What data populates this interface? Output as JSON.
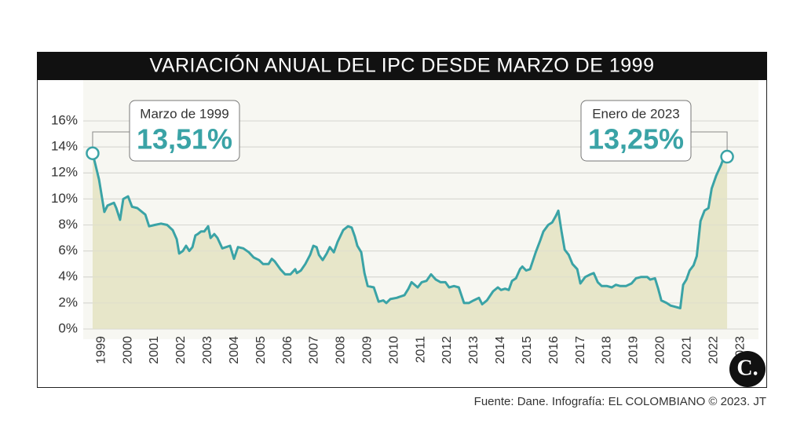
{
  "chart_data": {
    "type": "area",
    "title": "VARIACIÓN ANUAL DEL IPC DESDE MARZO DE 1999",
    "source": "Fuente: Dane. Infografía: EL COLOMBIANO © 2023. JT",
    "logo": "C.",
    "x": [
      1999.17,
      1999.41,
      1999.61,
      1999.73,
      1999.97,
      2000.06,
      2000.2,
      2000.32,
      2000.5,
      2000.65,
      2000.85,
      2001.15,
      2001.29,
      2001.5,
      2001.74,
      2001.97,
      2002.18,
      2002.33,
      2002.42,
      2002.56,
      2002.68,
      2002.8,
      2002.92,
      2003.03,
      2003.12,
      2003.24,
      2003.36,
      2003.51,
      2003.6,
      2003.74,
      2003.86,
      2004.04,
      2004.33,
      2004.48,
      2004.63,
      2004.83,
      2005.04,
      2005.22,
      2005.42,
      2005.57,
      2005.78,
      2005.9,
      2006.01,
      2006.22,
      2006.4,
      2006.6,
      2006.78,
      2006.84,
      2006.99,
      2007.16,
      2007.34,
      2007.46,
      2007.58,
      2007.67,
      2007.81,
      2007.96,
      2008.08,
      2008.23,
      2008.37,
      2008.58,
      2008.76,
      2008.9,
      2009.02,
      2009.11,
      2009.26,
      2009.38,
      2009.5,
      2009.73,
      2009.91,
      2010.09,
      2010.2,
      2010.35,
      2010.59,
      2010.88,
      2011.03,
      2011.15,
      2011.38,
      2011.53,
      2011.71,
      2011.88,
      2012.06,
      2012.24,
      2012.42,
      2012.56,
      2012.74,
      2012.92,
      2013.12,
      2013.3,
      2013.48,
      2013.68,
      2013.8,
      2013.98,
      2014.21,
      2014.39,
      2014.51,
      2014.66,
      2014.8,
      2014.92,
      2015.07,
      2015.22,
      2015.31,
      2015.45,
      2015.6,
      2015.81,
      2015.98,
      2016.1,
      2016.28,
      2016.43,
      2016.57,
      2016.66,
      2016.78,
      2016.9,
      2017.05,
      2017.19,
      2017.37,
      2017.49,
      2017.67,
      2017.87,
      2017.99,
      2018.14,
      2018.29,
      2018.49,
      2018.67,
      2018.82,
      2018.99,
      2019.2,
      2019.41,
      2019.58,
      2019.76,
      2020.0,
      2020.11,
      2020.29,
      2020.41,
      2020.53,
      2020.73,
      2020.88,
      2021.06,
      2021.24,
      2021.35,
      2021.47,
      2021.59,
      2021.74,
      2021.86,
      2022.0,
      2022.15,
      2022.3,
      2022.42,
      2022.59,
      2022.77,
      2022.86,
      2023.0
    ],
    "series": [
      {
        "color": "#3aa3a6",
        "fill": "#e7e6c9",
        "values": [
          13.51,
          11.5,
          9.0,
          9.5,
          9.7,
          9.3,
          8.4,
          10.0,
          10.2,
          9.4,
          9.3,
          8.8,
          7.9,
          8.0,
          8.1,
          8.0,
          7.6,
          6.9,
          5.8,
          6.0,
          6.4,
          6.0,
          6.3,
          7.2,
          7.3,
          7.5,
          7.5,
          7.9,
          7.0,
          7.3,
          7.0,
          6.2,
          6.4,
          5.4,
          6.3,
          6.2,
          5.9,
          5.5,
          5.3,
          5.0,
          5.0,
          5.4,
          5.2,
          4.6,
          4.2,
          4.2,
          4.6,
          4.3,
          4.5,
          5.0,
          5.7,
          6.4,
          6.3,
          5.7,
          5.3,
          5.8,
          6.3,
          5.9,
          6.7,
          7.6,
          7.9,
          7.8,
          7.1,
          6.4,
          5.9,
          4.3,
          3.3,
          3.2,
          2.1,
          2.2,
          2.0,
          2.3,
          2.4,
          2.6,
          3.1,
          3.6,
          3.2,
          3.6,
          3.7,
          4.2,
          3.8,
          3.6,
          3.6,
          3.2,
          3.3,
          3.2,
          2.0,
          2.0,
          2.2,
          2.4,
          1.9,
          2.2,
          2.9,
          3.2,
          3.0,
          3.1,
          3.0,
          3.7,
          3.9,
          4.6,
          4.8,
          4.5,
          4.6,
          5.9,
          6.8,
          7.5,
          8.0,
          8.2,
          8.7,
          9.1,
          7.5,
          6.1,
          5.7,
          5.0,
          4.6,
          3.5,
          4.0,
          4.2,
          4.3,
          3.6,
          3.3,
          3.3,
          3.2,
          3.4,
          3.3,
          3.3,
          3.5,
          3.9,
          4.0,
          4.0,
          3.8,
          3.9,
          3.1,
          2.2,
          2.0,
          1.8,
          1.7,
          1.6,
          3.4,
          3.8,
          4.5,
          4.9,
          5.6,
          8.3,
          9.1,
          9.3,
          10.8,
          11.8,
          12.6,
          13.1,
          13.25
        ]
      }
    ],
    "annotations": [
      {
        "text": "Marzo de 1999",
        "x": 1999.17,
        "value": 13.51,
        "value_label": "13,51%"
      },
      {
        "text": "Enero de 2023",
        "x": 2023.0,
        "value": 13.25,
        "value_label": "13,25%"
      }
    ],
    "xlim": [
      1999,
      2024
    ],
    "xticks": [
      1999,
      2000,
      2001,
      2002,
      2003,
      2004,
      2005,
      2006,
      2007,
      2008,
      2009,
      2010,
      2011,
      2012,
      2013,
      2014,
      2015,
      2016,
      2017,
      2018,
      2019,
      2020,
      2021,
      2022,
      2023
    ],
    "ylim": [
      0,
      16
    ],
    "yticks": [
      {
        "value": 0,
        "label": "0%"
      },
      {
        "value": 2,
        "label": "2%"
      },
      {
        "value": 4,
        "label": "4%"
      },
      {
        "value": 6,
        "label": "6%"
      },
      {
        "value": 8,
        "label": "8%"
      },
      {
        "value": 10,
        "label": "10%"
      },
      {
        "value": 12,
        "label": "12%"
      },
      {
        "value": 14,
        "label": "14%"
      },
      {
        "value": 16,
        "label": "16%"
      }
    ],
    "grid": true
  }
}
